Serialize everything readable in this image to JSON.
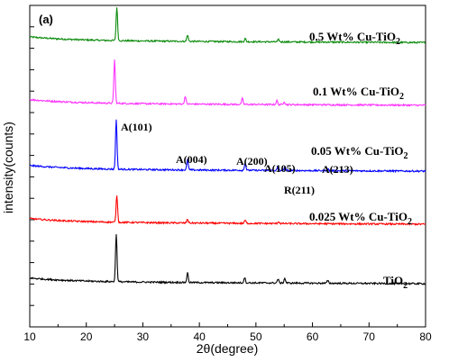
{
  "chart_data": {
    "type": "line",
    "panel_label": "(a)",
    "xlabel": "2θ(degree)",
    "ylabel": "intensity(counts)",
    "xlim": [
      10,
      80
    ],
    "xticks": [
      10,
      20,
      30,
      40,
      50,
      60,
      70,
      80
    ],
    "y_tick_labels": "none",
    "series": [
      {
        "name": "0.5 Wt% Cu-TiO2",
        "label_main": "0.5 Wt% Cu-TiO",
        "label_sub": "2",
        "color": "#0a8a0a",
        "baseline": 0.89,
        "peaks": [
          [
            25.4,
            0.105
          ],
          [
            37.9,
            0.02
          ],
          [
            48.1,
            0.01
          ],
          [
            54.0,
            0.007
          ]
        ]
      },
      {
        "name": "0.1 Wt% Cu-TiO2",
        "label_main": "0.1 Wt% Cu-TiO",
        "label_sub": "2",
        "color": "#ff33ff",
        "baseline": 0.695,
        "peaks": [
          [
            25.0,
            0.135
          ],
          [
            37.5,
            0.025
          ],
          [
            47.6,
            0.018
          ],
          [
            53.7,
            0.012
          ],
          [
            55.0,
            0.01
          ]
        ]
      },
      {
        "name": "0.05 Wt% Cu-TiO2",
        "label_main": "0.05 Wt% Cu-TiO",
        "label_sub": "2",
        "color": "#0000ff",
        "baseline": 0.49,
        "peaks": [
          [
            25.3,
            0.155
          ],
          [
            37.9,
            0.032
          ],
          [
            48.1,
            0.024
          ],
          [
            53.9,
            0.012
          ],
          [
            55.1,
            0.012
          ],
          [
            62.7,
            0.006
          ]
        ]
      },
      {
        "name": "0.025 Wt% Cu-TiO2",
        "label_main": "0.025 Wt% Cu-TiO",
        "label_sub": "2",
        "color": "#ff0000",
        "baseline": 0.325,
        "peaks": [
          [
            25.4,
            0.085
          ],
          [
            37.9,
            0.012
          ],
          [
            48.1,
            0.01
          ],
          [
            54.0,
            0.006
          ]
        ]
      },
      {
        "name": "TiO2",
        "label_main": "TiO",
        "label_sub": "2",
        "color": "#000000",
        "baseline": 0.14,
        "peaks": [
          [
            25.3,
            0.15
          ],
          [
            37.9,
            0.03
          ],
          [
            48.0,
            0.017
          ],
          [
            53.9,
            0.012
          ],
          [
            55.1,
            0.015
          ],
          [
            62.7,
            0.008
          ]
        ]
      }
    ],
    "annotations": [
      {
        "text": "A(101)",
        "x": 25.3,
        "series": "0.05 Wt% Cu-TiO2"
      },
      {
        "text": "A(004)",
        "x": 37.9,
        "series": "0.05 Wt% Cu-TiO2"
      },
      {
        "text": "A(200)",
        "x": 48.1,
        "series": "0.05 Wt% Cu-TiO2"
      },
      {
        "text": "A(105)",
        "x": 54.0,
        "series": "0.05 Wt% Cu-TiO2"
      },
      {
        "text": "R(211)",
        "x": 54.5,
        "series": "0.05 Wt% Cu-TiO2"
      },
      {
        "text": "A(213)",
        "x": 62.7,
        "series": "0.05 Wt% Cu-TiO2"
      }
    ]
  }
}
